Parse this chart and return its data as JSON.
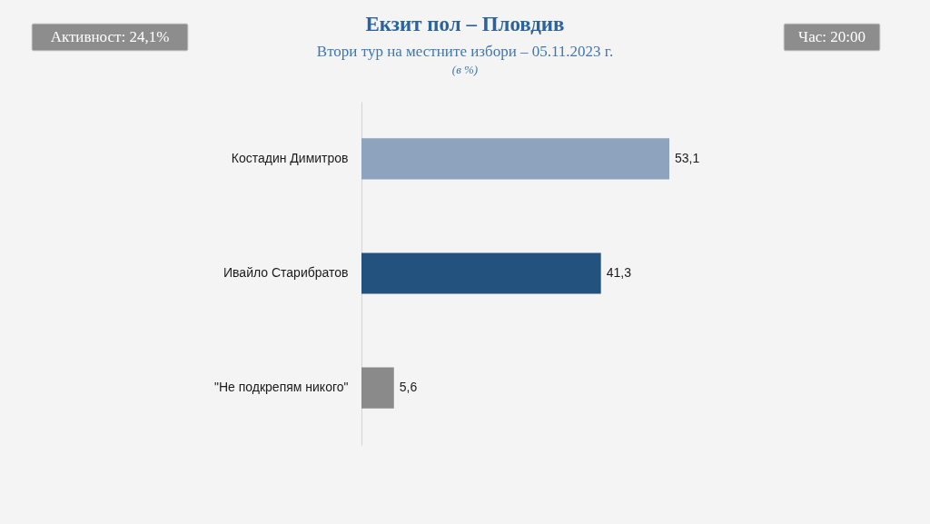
{
  "chart_data": {
    "type": "bar",
    "orientation": "horizontal",
    "title": "Екзит пол – Пловдив",
    "subtitle": "Втори тур на местните избори – 05.11.2023 г.",
    "annotations": [
      "(в %)",
      "Активност: 24,1%",
      "Час: 20:00"
    ],
    "categories": [
      "Костадин Димитров",
      "Ивайло Старибратов",
      "\"Не подкрепям никого\""
    ],
    "values": [
      53.1,
      41.3,
      5.6
    ],
    "colors": [
      "#8ea3bd",
      "#24527f",
      "#8a8a8a"
    ],
    "value_labels": [
      "53,1",
      "41,3",
      "5,6"
    ],
    "tick_labels": "y"
  }
}
